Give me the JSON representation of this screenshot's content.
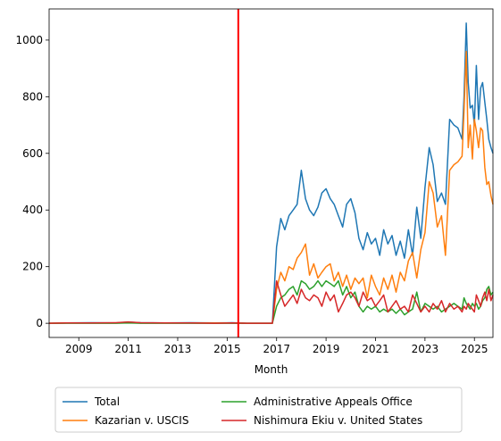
{
  "chart_data": {
    "type": "line",
    "title": "",
    "xlabel": "Month",
    "ylabel": "",
    "xlim": [
      2007.8,
      2025.75
    ],
    "ylim": [
      -50,
      1110
    ],
    "x_ticks": [
      2009,
      2011,
      2013,
      2015,
      2017,
      2019,
      2021,
      2023,
      2025
    ],
    "x_tick_labels": [
      "2009",
      "2011",
      "2013",
      "2015",
      "2017",
      "2019",
      "2021",
      "2023",
      "2025"
    ],
    "y_ticks": [
      0,
      200,
      400,
      600,
      800,
      1000
    ],
    "y_tick_labels": [
      "0",
      "200",
      "400",
      "600",
      "800",
      "1000"
    ],
    "grid": false,
    "legend_position": "bottom-center",
    "vline": {
      "x": 2015.45,
      "color": "#ff0000"
    },
    "series": [
      {
        "name": "Total",
        "color": "#1f77b4",
        "x": [
          2007.8,
          2008.5,
          2009.5,
          2010.5,
          2011.0,
          2011.5,
          2012.5,
          2013.5,
          2014.5,
          2015.2,
          2015.8,
          2016.5,
          2016.83,
          2017.0,
          2017.17,
          2017.33,
          2017.5,
          2017.67,
          2017.83,
          2018.0,
          2018.17,
          2018.33,
          2018.5,
          2018.67,
          2018.83,
          2019.0,
          2019.17,
          2019.33,
          2019.5,
          2019.67,
          2019.83,
          2020.0,
          2020.17,
          2020.33,
          2020.5,
          2020.67,
          2020.83,
          2021.0,
          2021.17,
          2021.33,
          2021.5,
          2021.67,
          2021.83,
          2022.0,
          2022.17,
          2022.33,
          2022.5,
          2022.67,
          2022.83,
          2023.0,
          2023.17,
          2023.33,
          2023.5,
          2023.67,
          2023.83,
          2024.0,
          2024.17,
          2024.33,
          2024.5,
          2024.58,
          2024.67,
          2024.75,
          2024.83,
          2024.92,
          2025.0,
          2025.08,
          2025.17,
          2025.25,
          2025.33,
          2025.42,
          2025.5,
          2025.58,
          2025.67,
          2025.75
        ],
        "y": [
          0,
          1,
          2,
          1,
          4,
          2,
          1,
          2,
          1,
          2,
          0,
          0,
          0,
          270,
          370,
          330,
          380,
          400,
          420,
          540,
          440,
          400,
          380,
          410,
          460,
          475,
          440,
          420,
          380,
          340,
          420,
          440,
          390,
          300,
          260,
          320,
          280,
          300,
          240,
          330,
          280,
          310,
          240,
          290,
          230,
          330,
          240,
          410,
          300,
          480,
          620,
          560,
          430,
          460,
          420,
          720,
          700,
          690,
          650,
          800,
          1060,
          850,
          760,
          770,
          700,
          910,
          720,
          830,
          850,
          780,
          720,
          650,
          620,
          600
        ]
      },
      {
        "name": "Kazarian v. USCIS",
        "color": "#ff7f0e",
        "x": [
          2007.8,
          2008.5,
          2009.5,
          2010.5,
          2011.0,
          2011.5,
          2012.5,
          2013.5,
          2014.5,
          2015.2,
          2015.8,
          2016.5,
          2016.83,
          2017.0,
          2017.17,
          2017.33,
          2017.5,
          2017.67,
          2017.83,
          2018.0,
          2018.17,
          2018.33,
          2018.5,
          2018.67,
          2018.83,
          2019.0,
          2019.17,
          2019.33,
          2019.5,
          2019.67,
          2019.83,
          2020.0,
          2020.17,
          2020.33,
          2020.5,
          2020.67,
          2020.83,
          2021.0,
          2021.17,
          2021.33,
          2021.5,
          2021.67,
          2021.83,
          2022.0,
          2022.17,
          2022.33,
          2022.5,
          2022.67,
          2022.83,
          2023.0,
          2023.17,
          2023.33,
          2023.5,
          2023.67,
          2023.83,
          2024.0,
          2024.17,
          2024.33,
          2024.5,
          2024.58,
          2024.67,
          2024.75,
          2024.83,
          2024.92,
          2025.0,
          2025.08,
          2025.17,
          2025.25,
          2025.33,
          2025.42,
          2025.5,
          2025.58,
          2025.67,
          2025.75
        ],
        "y": [
          0,
          1,
          1,
          1,
          2,
          1,
          1,
          1,
          1,
          1,
          0,
          0,
          0,
          120,
          180,
          150,
          200,
          190,
          230,
          250,
          280,
          170,
          210,
          160,
          180,
          200,
          210,
          150,
          180,
          130,
          170,
          120,
          160,
          140,
          160,
          90,
          170,
          130,
          100,
          160,
          120,
          170,
          110,
          180,
          150,
          220,
          250,
          160,
          260,
          320,
          500,
          460,
          340,
          380,
          240,
          540,
          560,
          570,
          590,
          750,
          960,
          620,
          700,
          580,
          720,
          680,
          620,
          690,
          680,
          550,
          490,
          500,
          450,
          420
        ]
      },
      {
        "name": "Administrative Appeals Office",
        "color": "#2ca02c",
        "x": [
          2007.8,
          2008.5,
          2009.5,
          2010.5,
          2011.0,
          2011.5,
          2012.5,
          2013.5,
          2014.5,
          2015.2,
          2015.8,
          2016.5,
          2016.83,
          2017.0,
          2017.17,
          2017.33,
          2017.5,
          2017.67,
          2017.83,
          2018.0,
          2018.17,
          2018.33,
          2018.5,
          2018.67,
          2018.83,
          2019.0,
          2019.17,
          2019.33,
          2019.5,
          2019.67,
          2019.83,
          2020.0,
          2020.17,
          2020.33,
          2020.5,
          2020.67,
          2020.83,
          2021.0,
          2021.17,
          2021.33,
          2021.5,
          2021.67,
          2021.83,
          2022.0,
          2022.17,
          2022.33,
          2022.5,
          2022.67,
          2022.83,
          2023.0,
          2023.17,
          2023.33,
          2023.5,
          2023.67,
          2023.83,
          2024.0,
          2024.17,
          2024.33,
          2024.5,
          2024.58,
          2024.67,
          2024.75,
          2024.83,
          2024.92,
          2025.0,
          2025.08,
          2025.17,
          2025.25,
          2025.33,
          2025.42,
          2025.5,
          2025.58,
          2025.67,
          2025.75
        ],
        "y": [
          0,
          0,
          0,
          0,
          1,
          0,
          0,
          0,
          0,
          0,
          0,
          0,
          0,
          60,
          90,
          100,
          120,
          130,
          100,
          150,
          140,
          120,
          130,
          150,
          130,
          150,
          140,
          130,
          150,
          100,
          130,
          90,
          110,
          60,
          40,
          60,
          50,
          60,
          40,
          50,
          40,
          50,
          35,
          50,
          30,
          40,
          50,
          110,
          40,
          70,
          60,
          50,
          60,
          40,
          50,
          60,
          70,
          60,
          50,
          90,
          70,
          60,
          50,
          70,
          60,
          70,
          50,
          60,
          80,
          90,
          120,
          130,
          100,
          110
        ]
      },
      {
        "name": "Nishimura Ekiu v. United States",
        "color": "#d62728",
        "x": [
          2007.8,
          2008.5,
          2009.5,
          2010.5,
          2011.0,
          2011.5,
          2012.5,
          2013.5,
          2014.5,
          2015.2,
          2015.8,
          2016.5,
          2016.83,
          2017.0,
          2017.17,
          2017.33,
          2017.5,
          2017.67,
          2017.83,
          2018.0,
          2018.17,
          2018.33,
          2018.5,
          2018.67,
          2018.83,
          2019.0,
          2019.17,
          2019.33,
          2019.5,
          2019.67,
          2019.83,
          2020.0,
          2020.17,
          2020.33,
          2020.5,
          2020.67,
          2020.83,
          2021.0,
          2021.17,
          2021.33,
          2021.5,
          2021.67,
          2021.83,
          2022.0,
          2022.17,
          2022.33,
          2022.5,
          2022.67,
          2022.83,
          2023.0,
          2023.17,
          2023.33,
          2023.5,
          2023.67,
          2023.83,
          2024.0,
          2024.17,
          2024.33,
          2024.5,
          2024.58,
          2024.67,
          2024.75,
          2024.83,
          2024.92,
          2025.0,
          2025.08,
          2025.17,
          2025.25,
          2025.33,
          2025.42,
          2025.5,
          2025.58,
          2025.67,
          2025.75
        ],
        "y": [
          0,
          1,
          1,
          2,
          5,
          2,
          1,
          1,
          0,
          1,
          0,
          0,
          0,
          150,
          100,
          60,
          80,
          100,
          70,
          120,
          90,
          80,
          100,
          90,
          60,
          110,
          80,
          100,
          40,
          70,
          100,
          110,
          90,
          60,
          110,
          80,
          90,
          60,
          80,
          100,
          40,
          60,
          80,
          50,
          60,
          40,
          100,
          70,
          40,
          60,
          40,
          70,
          50,
          80,
          40,
          70,
          50,
          60,
          40,
          60,
          50,
          70,
          60,
          50,
          40,
          100,
          80,
          60,
          90,
          110,
          80,
          120,
          80,
          100
        ]
      }
    ]
  }
}
